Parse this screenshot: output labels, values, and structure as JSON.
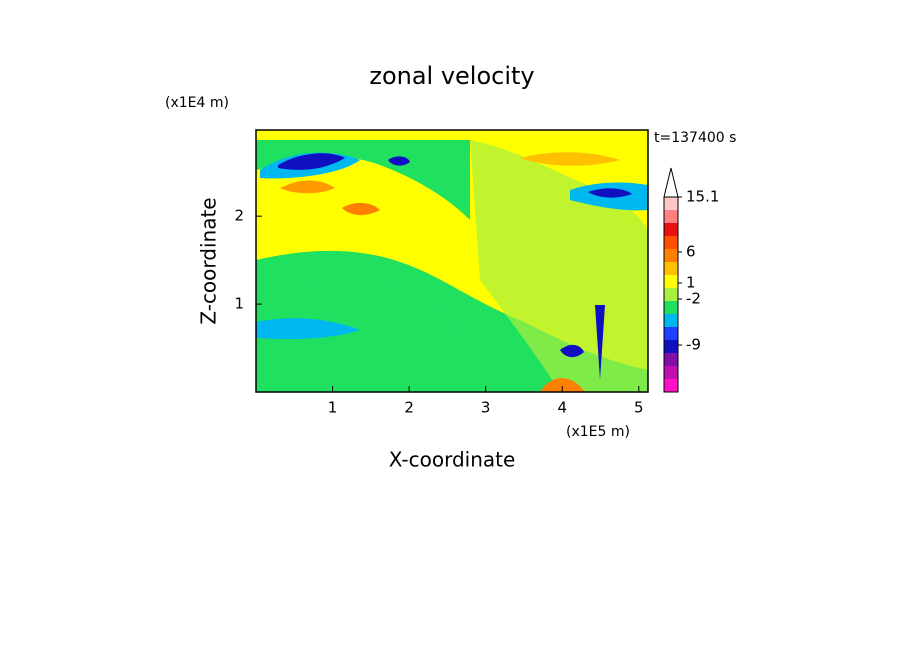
{
  "chart_data": {
    "type": "contour",
    "title": "zonal velocity",
    "x_label": "X-coordinate",
    "y_label": "Z-coordinate",
    "x_unit": "(x1E5 m)",
    "y_unit": "(x1E4 m)",
    "time_label": "t=137400 s",
    "xlim": [
      0,
      5.12
    ],
    "xticks": [
      1,
      2,
      3,
      4,
      5
    ],
    "ylim": [
      0,
      2.98
    ],
    "yticks": [
      1,
      2
    ],
    "colorbar": {
      "colors": [
        "#ff10c8",
        "#c010b0",
        "#8010a8",
        "#1010c0",
        "#2040ff",
        "#00b8f0",
        "#20e060",
        "#a8f040",
        "#ffff00",
        "#ffc000",
        "#ff8000",
        "#ff5000",
        "#e81010",
        "#ff8080",
        "#ffc8c8"
      ],
      "ticks": [
        15.1,
        6,
        1,
        -2,
        -9
      ]
    }
  }
}
